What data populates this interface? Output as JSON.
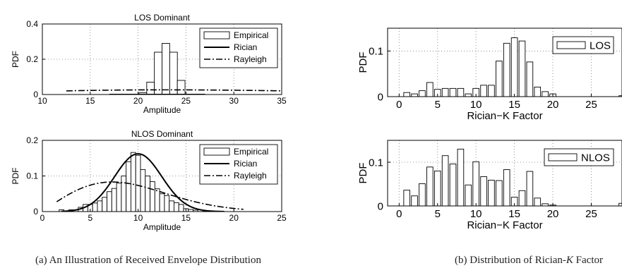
{
  "captions": {
    "left": "(a) An Illustration of Received Envelope Distribution",
    "right": "(b) Distribution of Rician-",
    "right_var": "K",
    "right_tail": " Factor"
  },
  "colors": {
    "bar_fill": "#ffffff",
    "stroke": "#000000",
    "grid": "#777777"
  },
  "chart_data": [
    {
      "id": "los-envelope",
      "type": "bar+line",
      "title": "LOS Dominant",
      "xlabel": "Amplitude",
      "ylabel": "PDF",
      "xlim": [
        10,
        35
      ],
      "ylim": [
        0,
        0.4
      ],
      "xticks": [
        "10",
        "15",
        "20",
        "25",
        "30",
        "35"
      ],
      "yticks": [
        "0",
        "0.2",
        "0.4"
      ],
      "grid": "dotted",
      "legend": [
        "Empirical",
        "Rician",
        "Rayleigh"
      ],
      "legend_position": "top-right",
      "histogram": {
        "bin_width": 0.8,
        "centers": [
          20.5,
          21.3,
          22.1,
          22.9,
          23.7,
          24.5
        ],
        "values": [
          0.01,
          0.07,
          0.24,
          0.29,
          0.24,
          0.08
        ]
      },
      "rician": {
        "name": "Rician",
        "nu": 22.7,
        "sigma": 1.3,
        "x_range": [
          17,
          27
        ]
      },
      "rayleigh": {
        "name": "Rayleigh",
        "sigma": 22.9,
        "x_range": [
          12.5,
          35
        ]
      }
    },
    {
      "id": "nlos-envelope",
      "type": "bar+line",
      "title": "NLOS Dominant",
      "xlabel": "Amplitude",
      "ylabel": "PDF",
      "xlim": [
        0,
        25
      ],
      "ylim": [
        0,
        0.2
      ],
      "xticks": [
        "0",
        "5",
        "10",
        "15",
        "20",
        "25"
      ],
      "yticks": [
        "0",
        "0.1",
        "0.2"
      ],
      "grid": "dotted",
      "legend": [
        "Empirical",
        "Rician",
        "Rayleigh"
      ],
      "legend_position": "top-right",
      "histogram": {
        "bin_width": 0.5,
        "centers": [
          2.0,
          3.0,
          4.0,
          4.5,
          5.0,
          5.5,
          6.0,
          6.5,
          7.0,
          7.5,
          8.0,
          8.5,
          9.0,
          9.5,
          10.0,
          10.5,
          11.0,
          11.5,
          12.0,
          12.5,
          13.0,
          13.5,
          14.0,
          14.5,
          15.0,
          15.5,
          16.0,
          17.0
        ],
        "values": [
          0.005,
          0.005,
          0.012,
          0.02,
          0.02,
          0.024,
          0.03,
          0.04,
          0.056,
          0.065,
          0.08,
          0.1,
          0.14,
          0.166,
          0.158,
          0.118,
          0.1,
          0.084,
          0.064,
          0.05,
          0.045,
          0.03,
          0.025,
          0.02,
          0.008,
          0.006,
          0.004,
          0.002
        ]
      },
      "rician": {
        "name": "Rician",
        "nu": 9.7,
        "sigma": 2.5,
        "x_range": [
          2,
          19
        ]
      },
      "rayleigh": {
        "name": "Rayleigh",
        "sigma": 7.3,
        "x_range": [
          1.5,
          21
        ]
      }
    },
    {
      "id": "los-k",
      "type": "bar",
      "title": "",
      "xlabel": "Rician−K Factor",
      "ylabel": "PDF",
      "xlim": [
        -1.5,
        29
      ],
      "ylim": [
        0,
        0.15
      ],
      "xticks": [
        "0",
        "5",
        "10",
        "15",
        "20",
        "25"
      ],
      "yticks": [
        "0",
        "0.1"
      ],
      "grid": "dotted",
      "legend": [
        "LOS"
      ],
      "legend_position": "top-right",
      "bin_width": 0.8,
      "x": [
        1,
        2,
        3,
        4,
        5,
        6,
        7,
        8,
        9,
        10,
        11,
        12,
        13,
        14,
        15,
        16,
        17,
        18,
        19,
        20,
        29
      ],
      "values": [
        0.009,
        0.006,
        0.013,
        0.031,
        0.016,
        0.018,
        0.018,
        0.018,
        0.006,
        0.018,
        0.025,
        0.025,
        0.078,
        0.117,
        0.129,
        0.122,
        0.076,
        0.021,
        0.011,
        0.006,
        0.002
      ]
    },
    {
      "id": "nlos-k",
      "type": "bar",
      "title": "",
      "xlabel": "Rician−K Factor",
      "ylabel": "PDF",
      "xlim": [
        -1.5,
        29
      ],
      "ylim": [
        0,
        0.15
      ],
      "xticks": [
        "0",
        "5",
        "10",
        "15",
        "20",
        "25"
      ],
      "yticks": [
        "0",
        "0.1"
      ],
      "grid": "dotted",
      "legend": [
        "NLOS"
      ],
      "legend_position": "top-right",
      "bin_width": 0.8,
      "x": [
        1,
        2,
        3,
        4,
        5,
        6,
        7,
        8,
        9,
        10,
        11,
        12,
        13,
        14,
        15,
        16,
        17,
        18,
        19,
        20,
        29
      ],
      "values": [
        0.036,
        0.023,
        0.051,
        0.089,
        0.08,
        0.115,
        0.096,
        0.13,
        0.048,
        0.101,
        0.067,
        0.059,
        0.058,
        0.083,
        0.02,
        0.035,
        0.079,
        0.018,
        0.005,
        0.002,
        0.006
      ]
    }
  ]
}
